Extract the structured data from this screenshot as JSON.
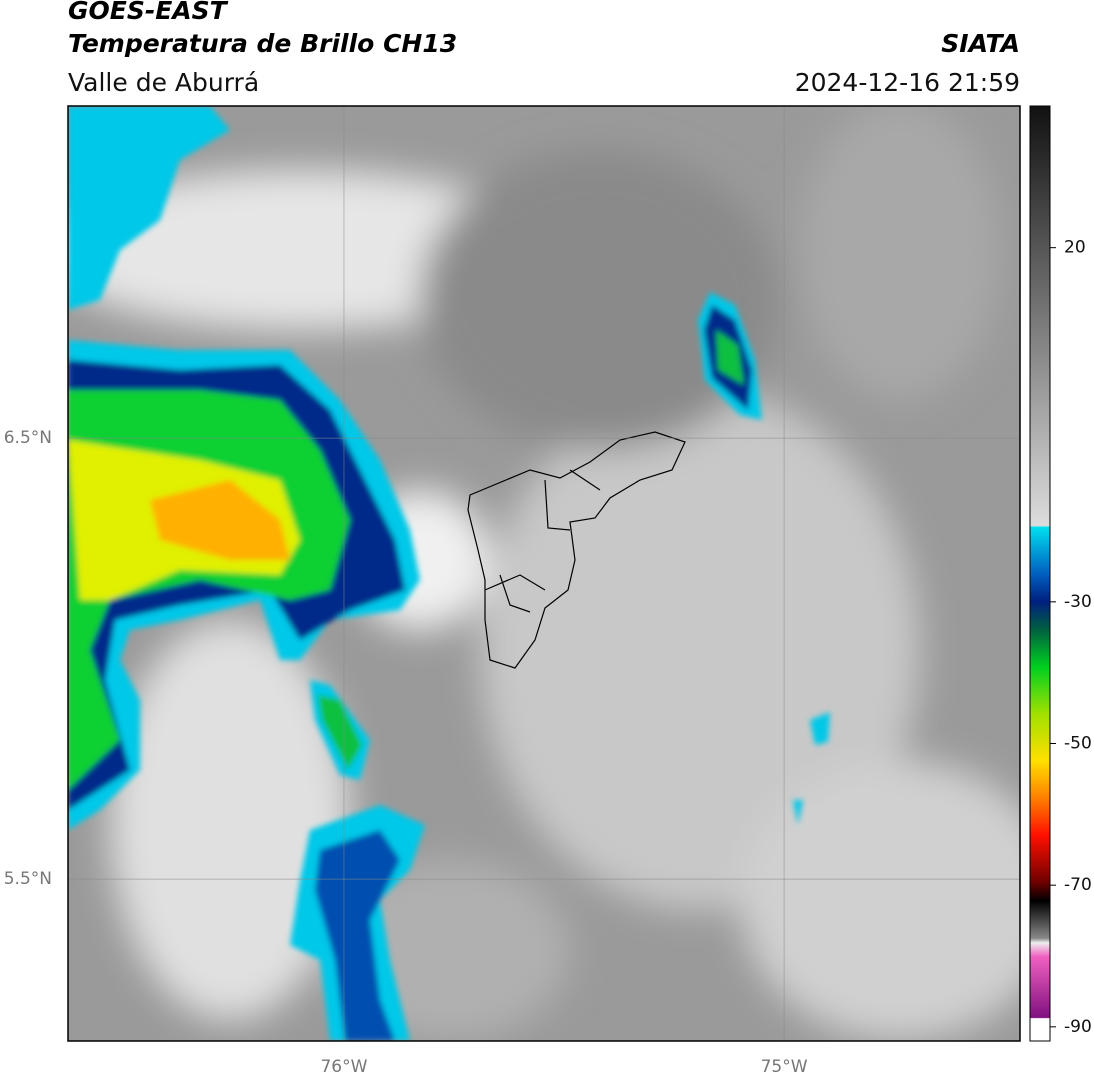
{
  "header": {
    "title": "GOES-EAST",
    "subtitle": "Temperatura de Brillo CH13",
    "region": "Valle de Aburrá",
    "source": "SIATA",
    "datetime": "2024-12-16 21:59"
  },
  "map": {
    "xlim": [
      -76.627,
      -74.464
    ],
    "ylim": [
      5.133,
      7.253
    ],
    "xticks": [
      {
        "value": -76,
        "label": "76°W"
      },
      {
        "value": -75,
        "label": "75°W"
      }
    ],
    "yticks": [
      {
        "value": 6.5,
        "label": "6.5°N"
      },
      {
        "value": 5.5,
        "label": "5.5°N"
      }
    ]
  },
  "colorbar": {
    "lim": [
      -92,
      40
    ],
    "ticks": [
      20,
      -30,
      -50,
      -70,
      -90
    ]
  }
}
